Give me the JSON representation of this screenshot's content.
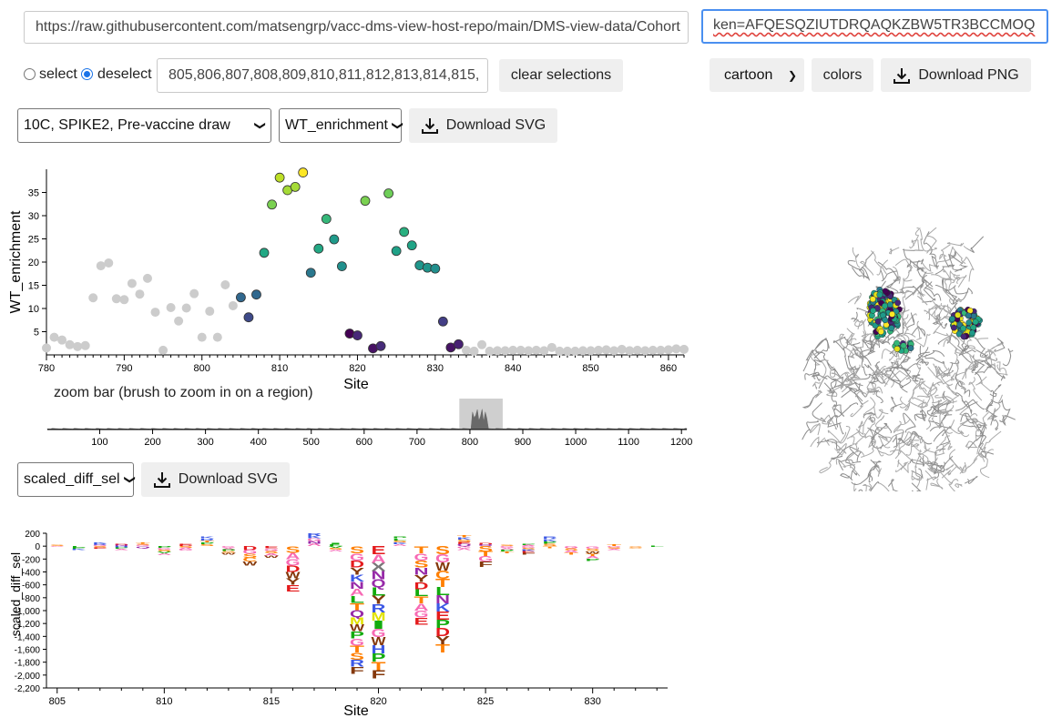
{
  "top": {
    "url_value": "https://raw.githubusercontent.com/matsengrp/vacc-dms-view-host-repo/main/DMS-view-data/Cohort",
    "token_value": "ken=AFQESQZIUTDRQAQKZBW5TR3BCCMOQ"
  },
  "selection": {
    "select_label": "select",
    "deselect_label": "deselect",
    "sites_value": "805,806,807,808,809,810,811,812,813,814,815,",
    "clear_label": "clear selections"
  },
  "structure": {
    "representation": "cartoon",
    "colors_label": "colors",
    "download_png_label": "Download PNG"
  },
  "controls": {
    "condition": "10C, SPIKE2, Pre-vaccine draw",
    "site_metric": "WT_enrichment",
    "download_svg_label": "Download SVG",
    "mut_metric": "scaled_diff_sel",
    "download_svg2_label": "Download SVG"
  },
  "zoom": {
    "label": "zoom bar (brush to zoom in on a region)"
  },
  "colors": {
    "accent": "#4a8ff0",
    "unselected": "#cccccc"
  },
  "chart_data": [
    {
      "type": "scatter",
      "xlabel": "Site",
      "ylabel": "WT_enrichment",
      "xlim": [
        780,
        862
      ],
      "ylim": [
        0,
        40
      ],
      "xticks": [
        780,
        790,
        800,
        810,
        820,
        830,
        840,
        850,
        860
      ],
      "yticks": [
        5,
        10,
        15,
        20,
        25,
        30,
        35
      ],
      "points": [
        [
          780,
          1.5,
          "#cccccc"
        ],
        [
          781,
          3.8,
          "#cccccc"
        ],
        [
          782,
          3.2,
          "#cccccc"
        ],
        [
          783,
          2.2,
          "#cccccc"
        ],
        [
          784,
          1.8,
          "#cccccc"
        ],
        [
          785,
          2.0,
          "#cccccc"
        ],
        [
          786,
          12.3,
          "#cccccc"
        ],
        [
          787,
          19.2,
          "#cccccc"
        ],
        [
          788,
          19.8,
          "#cccccc"
        ],
        [
          789,
          12.1,
          "#cccccc"
        ],
        [
          790,
          11.9,
          "#cccccc"
        ],
        [
          791,
          15.4,
          "#cccccc"
        ],
        [
          792,
          13.1,
          "#cccccc"
        ],
        [
          793,
          16.5,
          "#cccccc"
        ],
        [
          794,
          9.2,
          "#cccccc"
        ],
        [
          795,
          1.0,
          "#cccccc"
        ],
        [
          796,
          10.2,
          "#cccccc"
        ],
        [
          797,
          7.3,
          "#cccccc"
        ],
        [
          798,
          10.1,
          "#cccccc"
        ],
        [
          799,
          13.2,
          "#cccccc"
        ],
        [
          800,
          3.8,
          "#cccccc"
        ],
        [
          801,
          9.4,
          "#cccccc"
        ],
        [
          802,
          3.8,
          "#cccccc"
        ],
        [
          803,
          15.1,
          "#cccccc"
        ],
        [
          804,
          10.6,
          "#cccccc"
        ],
        [
          805,
          12.4,
          "#31688e"
        ],
        [
          806,
          8.1,
          "#3e4a89"
        ],
        [
          807,
          13.0,
          "#31688e"
        ],
        [
          808,
          22.0,
          "#22a884"
        ],
        [
          809,
          32.4,
          "#7ad151"
        ],
        [
          810,
          38.2,
          "#bddf26"
        ],
        [
          811,
          35.5,
          "#a5db36"
        ],
        [
          812,
          36.2,
          "#a5db36"
        ],
        [
          813,
          39.3,
          "#fde725"
        ],
        [
          814,
          17.7,
          "#2a788e"
        ],
        [
          815,
          22.9,
          "#22a884"
        ],
        [
          816,
          29.3,
          "#35b779"
        ],
        [
          817,
          24.9,
          "#1f9a8a"
        ],
        [
          818,
          19.1,
          "#21908d"
        ],
        [
          819,
          4.6,
          "#440154"
        ],
        [
          820,
          4.2,
          "#482878"
        ],
        [
          821,
          33.2,
          "#7ad151"
        ],
        [
          822,
          1.4,
          "#471164"
        ],
        [
          823,
          1.9,
          "#472c7a"
        ],
        [
          824,
          34.8,
          "#6ece58"
        ],
        [
          825,
          22.4,
          "#1fa187"
        ],
        [
          826,
          26.5,
          "#29af7f"
        ],
        [
          827,
          23.6,
          "#20a486"
        ],
        [
          828,
          19.3,
          "#1f968b"
        ],
        [
          829,
          18.8,
          "#1f958b"
        ],
        [
          830,
          18.6,
          "#218f8d"
        ],
        [
          831,
          7.2,
          "#433e85"
        ],
        [
          832,
          1.6,
          "#471365"
        ],
        [
          833,
          2.3,
          "#482173"
        ],
        [
          834,
          1.0,
          "#cccccc"
        ],
        [
          835,
          0.8,
          "#cccccc"
        ],
        [
          836,
          2.2,
          "#cccccc"
        ],
        [
          837,
          0.8,
          "#cccccc"
        ],
        [
          838,
          0.9,
          "#cccccc"
        ],
        [
          839,
          0.9,
          "#cccccc"
        ],
        [
          840,
          1.0,
          "#cccccc"
        ],
        [
          841,
          1.0,
          "#cccccc"
        ],
        [
          842,
          0.9,
          "#cccccc"
        ],
        [
          843,
          1.0,
          "#cccccc"
        ],
        [
          844,
          0.9,
          "#cccccc"
        ],
        [
          845,
          1.6,
          "#cccccc"
        ],
        [
          846,
          0.8,
          "#cccccc"
        ],
        [
          847,
          0.8,
          "#cccccc"
        ],
        [
          848,
          0.8,
          "#cccccc"
        ],
        [
          849,
          0.9,
          "#cccccc"
        ],
        [
          850,
          0.9,
          "#cccccc"
        ],
        [
          851,
          1.0,
          "#cccccc"
        ],
        [
          852,
          1.1,
          "#cccccc"
        ],
        [
          853,
          0.9,
          "#cccccc"
        ],
        [
          854,
          1.2,
          "#cccccc"
        ],
        [
          855,
          0.9,
          "#cccccc"
        ],
        [
          856,
          1.0,
          "#cccccc"
        ],
        [
          857,
          0.9,
          "#cccccc"
        ],
        [
          858,
          1.0,
          "#cccccc"
        ],
        [
          859,
          1.0,
          "#cccccc"
        ],
        [
          860,
          1.1,
          "#cccccc"
        ],
        [
          861,
          1.3,
          "#cccccc"
        ],
        [
          862,
          1.2,
          "#cccccc"
        ]
      ]
    },
    {
      "type": "area",
      "xlim": [
        1,
        1210
      ],
      "xticks": [
        100,
        200,
        300,
        400,
        500,
        600,
        700,
        800,
        900,
        1000,
        1100,
        1200
      ],
      "brush": [
        780,
        862
      ]
    },
    {
      "type": "bar",
      "xlabel": "Site",
      "ylabel": "scaled_diff_sel",
      "xlim": [
        804.5,
        833.5
      ],
      "ylim": [
        -2200,
        200
      ],
      "xticks": [
        805,
        810,
        815,
        820,
        825,
        830
      ],
      "yticks": [
        200,
        0,
        -200,
        -400,
        -600,
        -800,
        -1000,
        -1200,
        -1400,
        -1600,
        -1800,
        -2000,
        -2200
      ],
      "ytick_labels": [
        "200",
        "0",
        "-200",
        "-400",
        "-600",
        "-800",
        "-1,000",
        "-1,200",
        "-1,400",
        "-1,600",
        "-1,800",
        "-2,000",
        "-2,200"
      ],
      "logos": [
        {
          "site": 805,
          "pos": "S",
          "neg": "AG",
          "top": 15,
          "bottom": -15
        },
        {
          "site": 806,
          "pos": "",
          "neg": "LPK",
          "top": 0,
          "bottom": -60
        },
        {
          "site": 807,
          "pos": "KRG",
          "neg": "SE",
          "top": 60,
          "bottom": -40
        },
        {
          "site": 808,
          "pos": "DN",
          "neg": "HPA",
          "top": 40,
          "bottom": -60
        },
        {
          "site": 809,
          "pos": "TSG",
          "neg": "Q",
          "top": 55,
          "bottom": -30
        },
        {
          "site": 810,
          "pos": "",
          "neg": "PGSVA",
          "top": 0,
          "bottom": -140
        },
        {
          "site": 811,
          "pos": "ED",
          "neg": "SAG",
          "top": 30,
          "bottom": -70
        },
        {
          "site": 812,
          "pos": "KRTPS",
          "neg": "",
          "top": 150,
          "bottom": 0
        },
        {
          "site": 813,
          "pos": "",
          "neg": "GAPSW",
          "top": 0,
          "bottom": -130
        },
        {
          "site": 814,
          "pos": "",
          "neg": "DGSCW",
          "top": 0,
          "bottom": -300
        },
        {
          "site": 815,
          "pos": "",
          "neg": "EGSAW",
          "top": 0,
          "bottom": -180
        },
        {
          "site": 816,
          "pos": "",
          "neg": "SAGDWYE",
          "top": 0,
          "bottom": -700
        },
        {
          "site": 817,
          "pos": "RKGNA",
          "neg": "",
          "top": 200,
          "bottom": 0
        },
        {
          "site": 818,
          "pos": "IL",
          "neg": "VSA",
          "top": 50,
          "bottom": -80
        },
        {
          "site": 819,
          "pos": "",
          "neg": "SGDYKNALTQMWPGTSRF",
          "top": 0,
          "bottom": -1980
        },
        {
          "site": 820,
          "pos": "",
          "neg": "EAXNQLYRMIGWHPTF",
          "top": 0,
          "bottom": -2050
        },
        {
          "site": 821,
          "pos": "PLSKA",
          "neg": "",
          "top": 150,
          "bottom": 0
        },
        {
          "site": 822,
          "pos": "",
          "neg": "TGSNYDLTAGE",
          "top": 0,
          "bottom": -1220
        },
        {
          "site": 823,
          "pos": "",
          "neg": "SGWCTLNKEPDYT",
          "top": 0,
          "bottom": -1650
        },
        {
          "site": 824,
          "pos": "TKSEQ",
          "neg": "GA",
          "top": 170,
          "bottom": -60
        },
        {
          "site": 825,
          "pos": "DQ",
          "neg": "STGF",
          "top": 50,
          "bottom": -320
        },
        {
          "site": 826,
          "pos": "S",
          "neg": "GAPT",
          "top": 20,
          "bottom": -110
        },
        {
          "site": 827,
          "pos": "PA",
          "neg": "GSKEF",
          "top": 40,
          "bottom": -130
        },
        {
          "site": 828,
          "pos": "RKPS",
          "neg": "T",
          "top": 150,
          "bottom": -30
        },
        {
          "site": 829,
          "pos": "",
          "neg": "GSAT",
          "top": 0,
          "bottom": -130
        },
        {
          "site": 830,
          "pos": "",
          "neg": "GSWTAP",
          "top": 0,
          "bottom": -230
        },
        {
          "site": 831,
          "pos": "T",
          "neg": "GSA",
          "top": 30,
          "bottom": -60
        },
        {
          "site": 832,
          "pos": "",
          "neg": "S",
          "top": 0,
          "bottom": -30
        },
        {
          "site": 833,
          "pos": "",
          "neg": "L",
          "top": 0,
          "bottom": -15
        }
      ]
    }
  ]
}
